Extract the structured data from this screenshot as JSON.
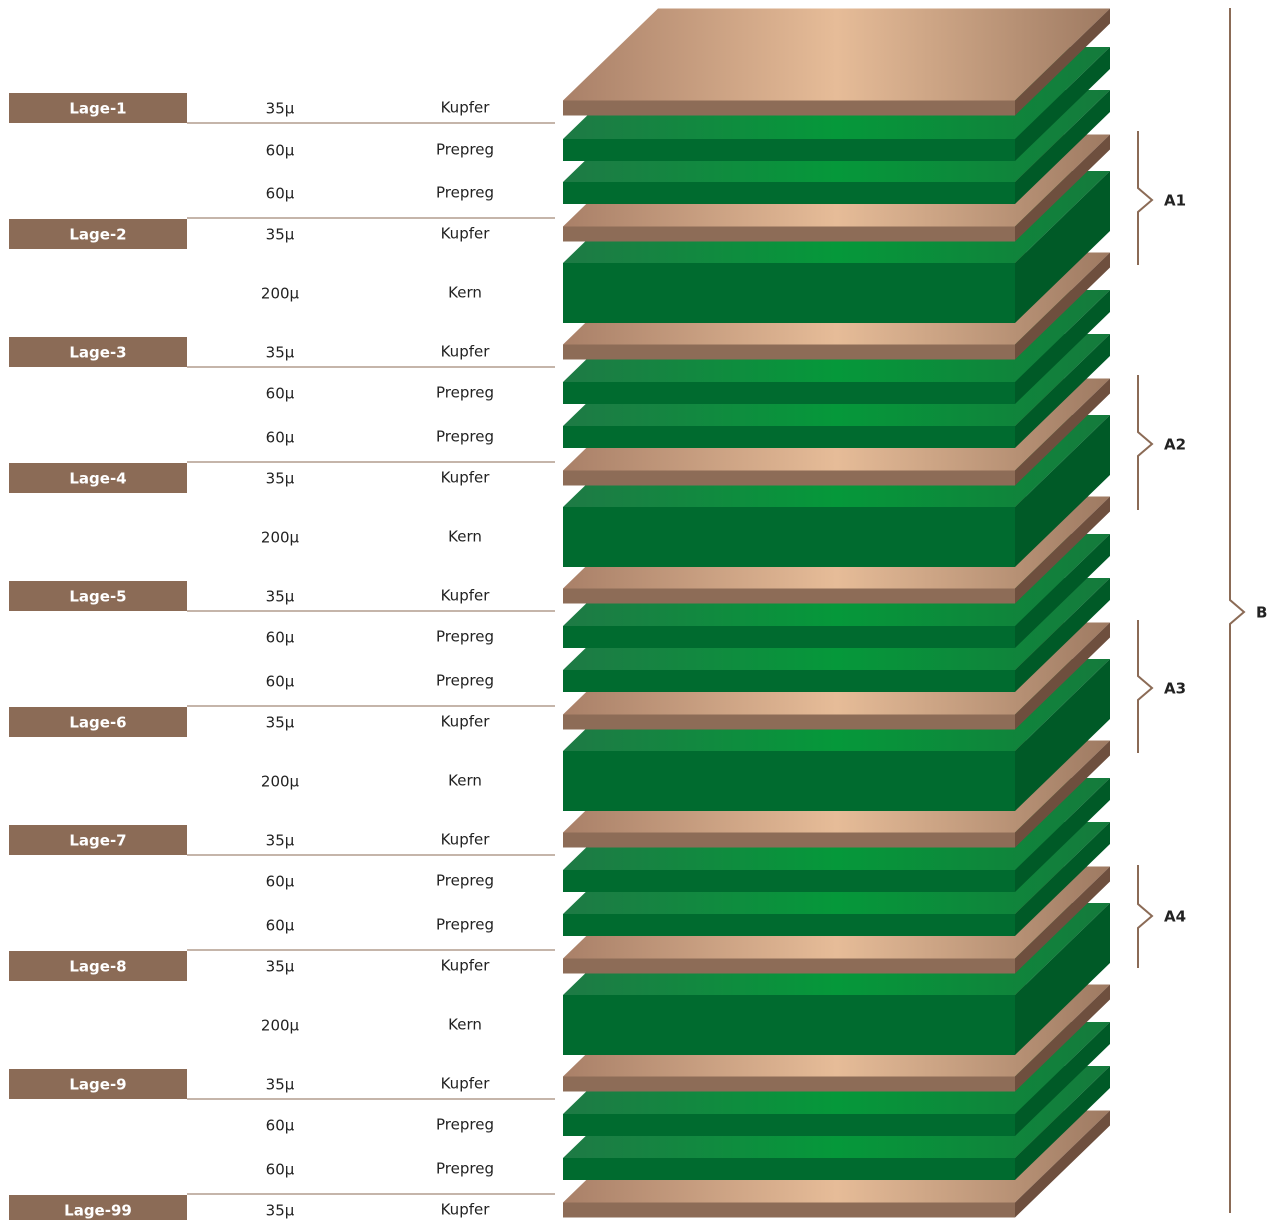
{
  "rows": [
    {
      "label": "Lage-1",
      "thickness": "35μ",
      "material": "Kupfer"
    },
    {
      "thickness": "60μ",
      "material": "Prepreg"
    },
    {
      "thickness": "60μ",
      "material": "Prepreg"
    },
    {
      "label": "Lage-2",
      "thickness": "35μ",
      "material": "Kupfer"
    },
    {
      "thickness": "200μ",
      "material": "Kern"
    },
    {
      "label": "Lage-3",
      "thickness": "35μ",
      "material": "Kupfer"
    },
    {
      "thickness": "60μ",
      "material": "Prepreg"
    },
    {
      "thickness": "60μ",
      "material": "Prepreg"
    },
    {
      "label": "Lage-4",
      "thickness": "35μ",
      "material": "Kupfer"
    },
    {
      "thickness": "200μ",
      "material": "Kern"
    },
    {
      "label": "Lage-5",
      "thickness": "35μ",
      "material": "Kupfer"
    },
    {
      "thickness": "60μ",
      "material": "Prepreg"
    },
    {
      "thickness": "60μ",
      "material": "Prepreg"
    },
    {
      "label": "Lage-6",
      "thickness": "35μ",
      "material": "Kupfer"
    },
    {
      "thickness": "200μ",
      "material": "Kern"
    },
    {
      "label": "Lage-7",
      "thickness": "35μ",
      "material": "Kupfer"
    },
    {
      "thickness": "60μ",
      "material": "Prepreg"
    },
    {
      "thickness": "60μ",
      "material": "Prepreg"
    },
    {
      "label": "Lage-8",
      "thickness": "35μ",
      "material": "Kupfer"
    },
    {
      "thickness": "200μ",
      "material": "Kern"
    },
    {
      "label": "Lage-9",
      "thickness": "35μ",
      "material": "Kupfer"
    },
    {
      "thickness": "60μ",
      "material": "Prepreg"
    },
    {
      "thickness": "60μ",
      "material": "Prepreg"
    },
    {
      "label": "Lage-99",
      "thickness": "35μ",
      "material": "Kupfer"
    }
  ],
  "groups": [
    {
      "label": "A1"
    },
    {
      "label": "A2"
    },
    {
      "label": "A3"
    },
    {
      "label": "A4"
    }
  ],
  "total": {
    "label": "B"
  }
}
